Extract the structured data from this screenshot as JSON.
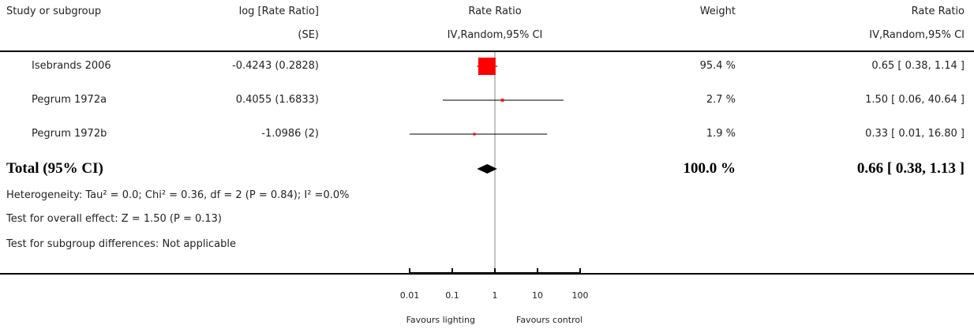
{
  "header": {
    "study": "Study or subgroup",
    "logrr_1": "log [Rate Ratio]",
    "logrr_2": "(SE)",
    "rr_plot_1": "Rate Ratio",
    "rr_plot_2": "IV,Random,95% CI",
    "weight": "Weight",
    "rr_1": "Rate Ratio",
    "rr_2": "IV,Random,95% CI"
  },
  "rows": [
    {
      "study": "Isebrands 2006",
      "logrr": "-0.4243 (0.2828)",
      "weight": "95.4 %",
      "ci": "0.65 [ 0.38, 1.14 ]"
    },
    {
      "study": "Pegrum 1972a",
      "logrr": "0.4055 (1.6833)",
      "weight": "2.7 %",
      "ci": "1.50 [ 0.06, 40.64 ]"
    },
    {
      "study": "Pegrum 1972b",
      "logrr": "-1.0986 (2)",
      "weight": "1.9 %",
      "ci": "0.33 [ 0.01, 16.80 ]"
    }
  ],
  "total": {
    "label": "Total (95% CI)",
    "weight": "100.0 %",
    "ci": "0.66 [ 0.38, 1.13 ]"
  },
  "footnotes": {
    "heterogeneity": "Heterogeneity: Tau² = 0.0; Chi² = 0.36, df = 2 (P = 0.84); I² =0.0%",
    "overall": "Test for overall effect: Z = 1.50 (P = 0.13)",
    "subgroup": "Test for subgroup differences: Not applicable"
  },
  "axis": {
    "ticks": [
      "0.01",
      "0.1",
      "1",
      "10",
      "100"
    ],
    "favours_left": "Favours lighting",
    "favours_right": "Favours control"
  },
  "colors": {
    "study_marker": "#ff0000",
    "line": "#000000",
    "ref_line": "#888888"
  },
  "chart_data": {
    "type": "forest",
    "scale": "log",
    "xlim": [
      0.01,
      100
    ],
    "ticks": [
      0.01,
      0.1,
      1,
      10,
      100
    ],
    "studies": [
      {
        "name": "Isebrands 2006",
        "rr": 0.65,
        "lo": 0.38,
        "hi": 1.14,
        "weight": 95.4
      },
      {
        "name": "Pegrum 1972a",
        "rr": 1.5,
        "lo": 0.06,
        "hi": 40.64,
        "weight": 2.7
      },
      {
        "name": "Pegrum 1972b",
        "rr": 0.33,
        "lo": 0.01,
        "hi": 16.8,
        "weight": 1.9
      }
    ],
    "pooled": {
      "rr": 0.66,
      "lo": 0.38,
      "hi": 1.13
    }
  }
}
